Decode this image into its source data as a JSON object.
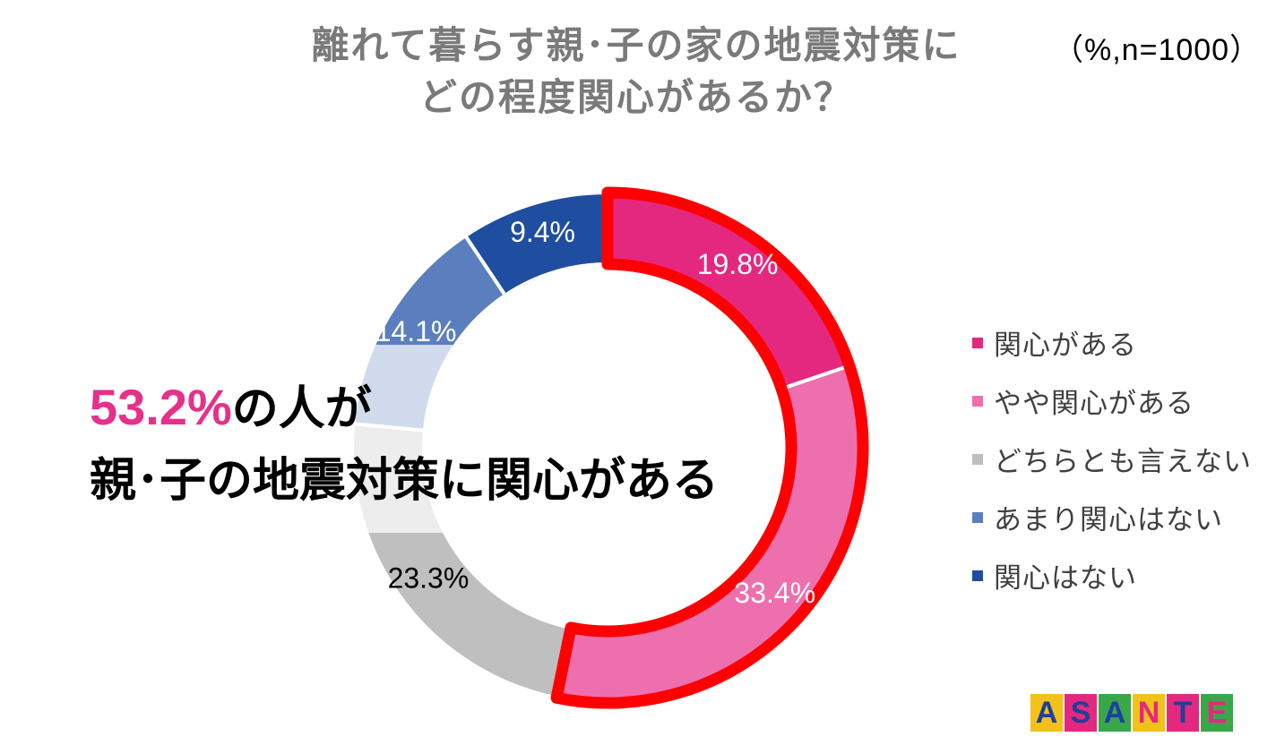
{
  "header": {
    "title_line1": "離れて暮らす親･子の家の地震対策に",
    "title_line2": "どの程度関心があるか？",
    "unit_note": "（%,n=1000）"
  },
  "chart_data": {
    "type": "pie",
    "variant": "donut",
    "categories": [
      "関心がある",
      "やや関心がある",
      "どちらとも言えない",
      "あまり関心はない",
      "関心はない"
    ],
    "values": [
      19.8,
      33.4,
      23.3,
      14.1,
      9.4
    ],
    "value_labels": [
      "19.8%",
      "33.4%",
      "23.3%",
      "14.1%",
      "9.4%"
    ],
    "colors": [
      "#e5287f",
      "#ee6fae",
      "#bfbfbf",
      "#5b7fbe",
      "#1f4ea1"
    ],
    "label_colors": [
      "#ffffff",
      "#ffffff",
      "#000000",
      "#ffffff",
      "#ffffff"
    ],
    "highlighted_categories": [
      "関心がある",
      "やや関心がある"
    ],
    "highlight_color": "#ff0000",
    "start": "12 o'clock, clockwise",
    "legend_position": "right"
  },
  "callout": {
    "percent": "53.2%",
    "line1_suffix": "の人が",
    "line2": "親･子の地震対策に関心がある"
  },
  "logo": {
    "letters": [
      "A",
      "S",
      "A",
      "N",
      "T",
      "E"
    ],
    "text": "ASANTE"
  }
}
